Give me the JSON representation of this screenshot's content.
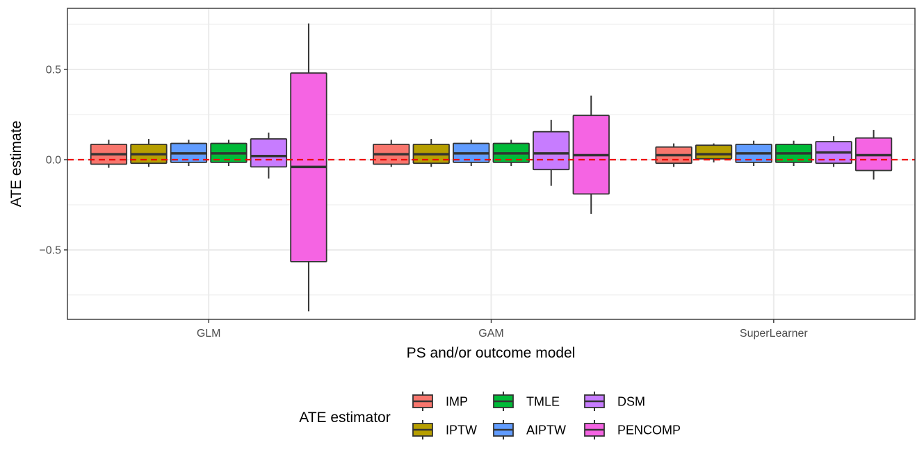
{
  "chart_data": {
    "type": "boxplot",
    "title": "",
    "xlabel": "PS and/or outcome model",
    "ylabel": "ATE estimate",
    "ylim": [
      -0.8849,
      0.8385
    ],
    "y_ticks": [
      0.5,
      0.0,
      -0.5
    ],
    "y_tick_labels": [
      "0.5",
      "0.0",
      "−0.5"
    ],
    "y_minor_ticks": [
      0.75,
      0.25,
      -0.25,
      -0.75
    ],
    "reference_line": {
      "y": 0,
      "color": "#ee0000",
      "style": "dashed"
    },
    "categories": [
      "GLM",
      "GAM",
      "SuperLearner"
    ],
    "legend": {
      "title": "ATE estimator",
      "position": "bottom",
      "entries": [
        "IMP",
        "IPTW",
        "TMLE",
        "AIPTW",
        "DSM",
        "PENCOMP"
      ],
      "columns": [
        [
          "IMP",
          "IPTW"
        ],
        [
          "TMLE",
          "AIPTW"
        ],
        [
          "DSM",
          "PENCOMP"
        ]
      ]
    },
    "series": [
      {
        "name": "IMP",
        "color": "#F8766D",
        "boxes": [
          {
            "min": -0.045,
            "q1": -0.025,
            "median": 0.03,
            "q3": 0.085,
            "max": 0.11
          },
          {
            "min": -0.04,
            "q1": -0.025,
            "median": 0.03,
            "q3": 0.085,
            "max": 0.11
          },
          {
            "min": -0.04,
            "q1": -0.02,
            "median": 0.025,
            "q3": 0.07,
            "max": 0.09
          }
        ]
      },
      {
        "name": "IPTW",
        "color": "#B79F00",
        "boxes": [
          {
            "min": -0.04,
            "q1": -0.02,
            "median": 0.03,
            "q3": 0.085,
            "max": 0.115
          },
          {
            "min": -0.04,
            "q1": -0.02,
            "median": 0.03,
            "q3": 0.085,
            "max": 0.115
          },
          {
            "min": -0.015,
            "q1": 0.005,
            "median": 0.03,
            "q3": 0.08,
            "max": 0.09
          }
        ]
      },
      {
        "name": "AIPTW",
        "color": "#619CFF",
        "boxes": [
          {
            "min": -0.035,
            "q1": -0.015,
            "median": 0.035,
            "q3": 0.09,
            "max": 0.11
          },
          {
            "min": -0.035,
            "q1": -0.015,
            "median": 0.035,
            "q3": 0.09,
            "max": 0.11
          },
          {
            "min": -0.035,
            "q1": -0.015,
            "median": 0.035,
            "q3": 0.085,
            "max": 0.105
          }
        ]
      },
      {
        "name": "TMLE",
        "color": "#00BA38",
        "boxes": [
          {
            "min": -0.035,
            "q1": -0.015,
            "median": 0.035,
            "q3": 0.09,
            "max": 0.11
          },
          {
            "min": -0.035,
            "q1": -0.015,
            "median": 0.035,
            "q3": 0.09,
            "max": 0.11
          },
          {
            "min": -0.035,
            "q1": -0.015,
            "median": 0.035,
            "q3": 0.085,
            "max": 0.105
          }
        ]
      },
      {
        "name": "DSM",
        "color": "#C77CFF",
        "boxes": [
          {
            "min": -0.105,
            "q1": -0.04,
            "median": 0.02,
            "q3": 0.115,
            "max": 0.15
          },
          {
            "min": -0.145,
            "q1": -0.055,
            "median": 0.035,
            "q3": 0.155,
            "max": 0.22
          },
          {
            "min": -0.04,
            "q1": -0.02,
            "median": 0.04,
            "q3": 0.1,
            "max": 0.13
          }
        ]
      },
      {
        "name": "PENCOMP",
        "color": "#F564E3",
        "boxes": [
          {
            "min": -0.84,
            "q1": -0.565,
            "median": -0.04,
            "q3": 0.48,
            "max": 0.755
          },
          {
            "min": -0.3,
            "q1": -0.19,
            "median": 0.025,
            "q3": 0.245,
            "max": 0.355
          },
          {
            "min": -0.11,
            "q1": -0.06,
            "median": 0.025,
            "q3": 0.12,
            "max": 0.165
          }
        ]
      }
    ]
  }
}
